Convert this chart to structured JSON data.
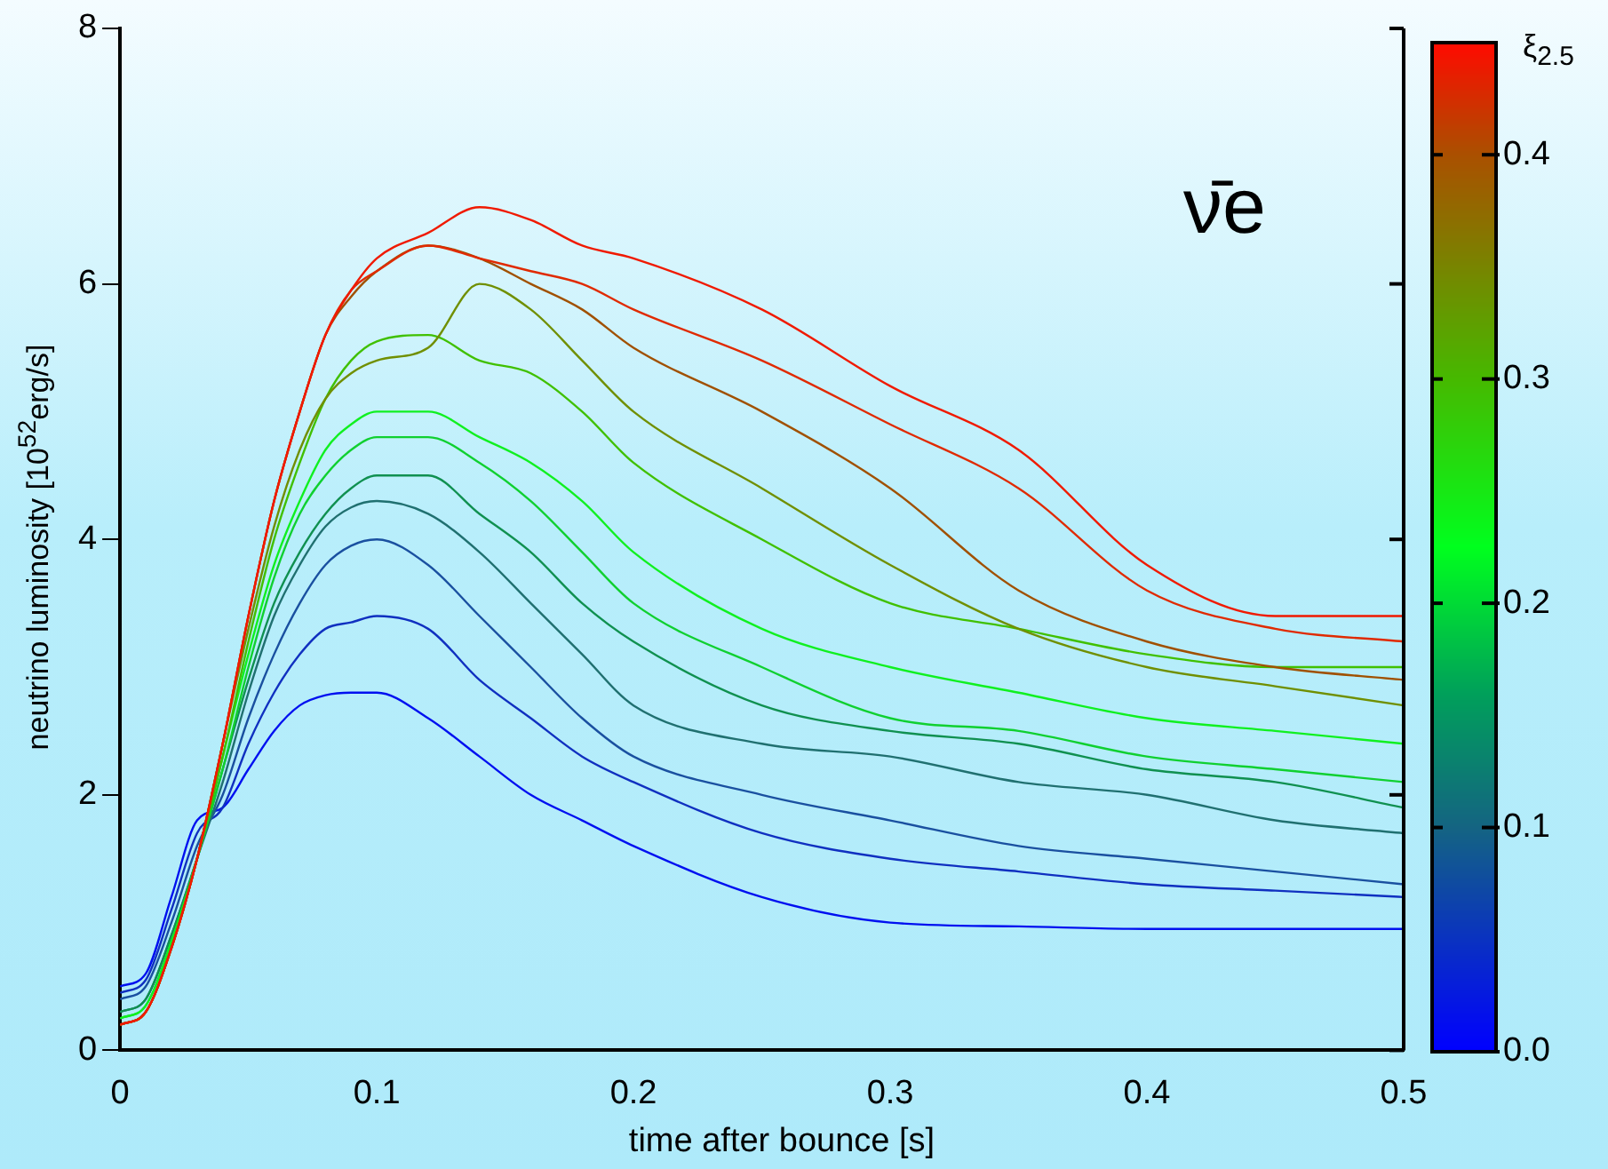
{
  "chart_data": {
    "type": "line",
    "xlabel": "time after bounce [s]",
    "ylabel": "neutrino luminosity [10$^{52}$erg/s]",
    "clabel": "ξ$_{2.5}$",
    "annotations": [
      "ν̄e"
    ],
    "x": [
      0,
      0.01,
      0.02,
      0.03,
      0.04,
      0.05,
      0.06,
      0.07,
      0.08,
      0.09,
      0.1,
      0.12,
      0.14,
      0.16,
      0.18,
      0.2,
      0.25,
      0.3,
      0.35,
      0.4,
      0.45,
      0.5
    ],
    "series": [
      {
        "color": "#f01a00",
        "values": [
          0.2,
          0.3,
          0.8,
          1.5,
          2.4,
          3.4,
          4.3,
          5.0,
          5.6,
          5.95,
          6.2,
          6.4,
          6.6,
          6.5,
          6.3,
          6.2,
          5.8,
          5.2,
          4.7,
          3.8,
          3.4,
          3.4
        ]
      },
      {
        "color": "#e02a00",
        "values": [
          0.2,
          0.3,
          0.8,
          1.5,
          2.4,
          3.4,
          4.3,
          5.0,
          5.6,
          5.95,
          6.1,
          6.3,
          6.2,
          6.1,
          6.0,
          5.8,
          5.4,
          4.9,
          4.4,
          3.6,
          3.3,
          3.2
        ]
      },
      {
        "color": "#a05000",
        "values": [
          0.2,
          0.3,
          0.8,
          1.5,
          2.4,
          3.4,
          4.3,
          5.0,
          5.6,
          5.9,
          6.1,
          6.3,
          6.2,
          6.0,
          5.8,
          5.5,
          5.0,
          4.4,
          3.6,
          3.2,
          3.0,
          2.9
        ]
      },
      {
        "color": "#708f00",
        "values": [
          0.2,
          0.3,
          0.8,
          1.5,
          2.4,
          3.3,
          4.1,
          4.7,
          5.1,
          5.3,
          5.4,
          5.5,
          6.0,
          5.8,
          5.4,
          5.0,
          4.4,
          3.8,
          3.3,
          3.0,
          2.85,
          2.7
        ]
      },
      {
        "color": "#40c000",
        "values": [
          0.2,
          0.3,
          0.8,
          1.5,
          2.3,
          3.2,
          4.0,
          4.6,
          5.1,
          5.4,
          5.55,
          5.6,
          5.4,
          5.3,
          5.0,
          4.6,
          4.0,
          3.5,
          3.3,
          3.1,
          3.0,
          3.0
        ]
      },
      {
        "color": "#10f020",
        "values": [
          0.25,
          0.35,
          0.85,
          1.5,
          2.3,
          3.1,
          3.8,
          4.3,
          4.7,
          4.9,
          5.0,
          5.0,
          4.8,
          4.6,
          4.3,
          3.9,
          3.3,
          3.0,
          2.8,
          2.6,
          2.5,
          2.4
        ]
      },
      {
        "color": "#10d030",
        "values": [
          0.25,
          0.35,
          0.85,
          1.5,
          2.2,
          3.0,
          3.7,
          4.2,
          4.5,
          4.7,
          4.8,
          4.8,
          4.6,
          4.3,
          3.9,
          3.5,
          3.0,
          2.6,
          2.5,
          2.3,
          2.2,
          2.1
        ]
      },
      {
        "color": "#109050",
        "values": [
          0.3,
          0.4,
          0.9,
          1.5,
          2.2,
          2.9,
          3.5,
          3.9,
          4.2,
          4.4,
          4.5,
          4.5,
          4.2,
          3.9,
          3.5,
          3.2,
          2.7,
          2.5,
          2.4,
          2.2,
          2.1,
          1.9
        ]
      },
      {
        "color": "#207070",
        "values": [
          0.3,
          0.4,
          0.9,
          1.5,
          2.1,
          2.8,
          3.4,
          3.8,
          4.1,
          4.25,
          4.3,
          4.2,
          3.9,
          3.5,
          3.1,
          2.7,
          2.4,
          2.3,
          2.1,
          2.0,
          1.8,
          1.7
        ]
      },
      {
        "color": "#1a50a0",
        "values": [
          0.4,
          0.5,
          1.0,
          1.6,
          2.0,
          2.6,
          3.1,
          3.5,
          3.8,
          3.95,
          4.0,
          3.8,
          3.4,
          3.0,
          2.6,
          2.3,
          2.0,
          1.8,
          1.6,
          1.5,
          1.4,
          1.3
        ]
      },
      {
        "color": "#1030c0",
        "values": [
          0.45,
          0.55,
          1.1,
          1.7,
          1.9,
          2.4,
          2.8,
          3.1,
          3.3,
          3.35,
          3.4,
          3.3,
          2.9,
          2.6,
          2.3,
          2.1,
          1.7,
          1.5,
          1.4,
          1.3,
          1.25,
          1.2
        ]
      },
      {
        "color": "#0010f0",
        "values": [
          0.5,
          0.6,
          1.2,
          1.8,
          1.9,
          2.2,
          2.5,
          2.7,
          2.78,
          2.8,
          2.8,
          2.6,
          2.3,
          2.0,
          1.8,
          1.6,
          1.2,
          1.0,
          0.97,
          0.95,
          0.95,
          0.95
        ]
      }
    ],
    "xlim": [
      0,
      0.5
    ],
    "xticks": [
      0,
      0.1,
      0.2,
      0.3,
      0.4,
      0.5
    ],
    "ylim": [
      0,
      8
    ],
    "yticks": [
      0,
      2,
      4,
      6,
      8
    ],
    "clim": [
      0,
      0.45
    ],
    "cticks": [
      {
        "value": 0,
        "label": "0.0"
      },
      0.1,
      0.2,
      0.3,
      0.4
    ],
    "grid": false,
    "legend": false,
    "marker": "none",
    "line_style": "solid"
  }
}
